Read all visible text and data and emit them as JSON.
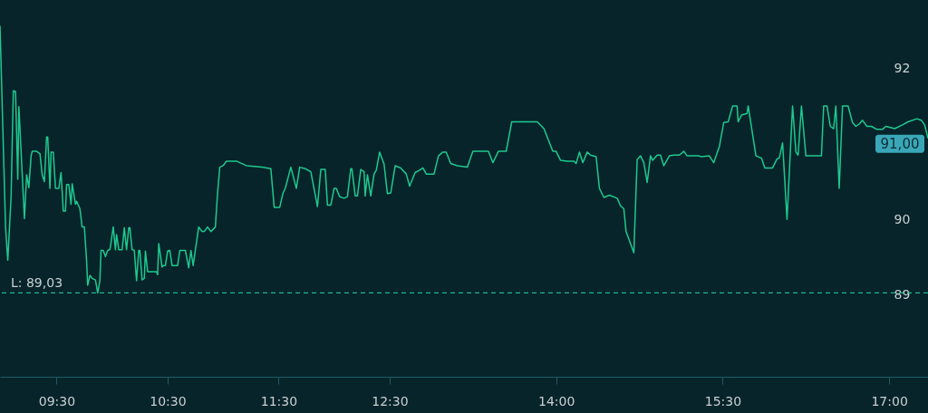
{
  "chart_data": {
    "type": "line",
    "x": [
      8.99,
      9.04,
      9.06,
      9.09,
      9.11,
      9.13,
      9.15,
      9.16,
      9.21,
      9.23,
      9.25,
      9.27,
      9.28,
      9.32,
      9.35,
      9.37,
      9.39,
      9.41,
      9.42,
      9.44,
      9.45,
      9.47,
      9.49,
      9.52,
      9.54,
      9.56,
      9.58,
      9.59,
      9.61,
      9.63,
      9.64,
      9.67,
      9.68,
      9.71,
      9.73,
      9.75,
      9.77,
      9.78,
      9.8,
      9.82,
      9.85,
      9.87,
      9.89,
      9.9,
      9.92,
      9.94,
      9.96,
      9.98,
      9.99,
      10.01,
      10.03,
      10.04,
      10.06,
      10.09,
      10.11,
      10.13,
      10.15,
      10.16,
      10.18,
      10.2,
      10.22,
      10.24,
      10.25,
      10.27,
      10.29,
      10.3,
      10.32,
      10.4,
      10.41,
      10.42,
      10.45,
      10.46,
      10.48,
      10.5,
      10.52,
      10.54,
      10.59,
      10.61,
      10.66,
      10.69,
      10.71,
      10.73,
      10.78,
      10.81,
      10.83,
      10.86,
      10.89,
      10.93,
      10.95,
      10.97,
      11.0,
      11.03,
      11.07,
      11.12,
      11.21,
      11.35,
      11.43,
      11.46,
      11.51,
      11.54,
      11.56,
      11.61,
      11.66,
      11.69,
      11.74,
      11.79,
      11.85,
      11.88,
      11.92,
      11.94,
      11.97,
      12.0,
      12.02,
      12.05,
      12.09,
      12.12,
      12.15,
      12.16,
      12.19,
      12.21,
      12.24,
      12.27,
      12.28,
      12.3,
      12.33,
      12.36,
      12.38,
      12.41,
      12.45,
      12.48,
      12.51,
      12.55,
      12.6,
      12.65,
      12.68,
      12.73,
      12.77,
      12.8,
      12.83,
      12.9,
      12.94,
      12.98,
      13.01,
      13.05,
      13.11,
      13.2,
      13.25,
      13.39,
      13.43,
      13.48,
      13.55,
      13.6,
      13.74,
      13.83,
      13.89,
      13.97,
      14.0,
      14.04,
      14.1,
      14.16,
      14.18,
      14.21,
      14.24,
      14.28,
      14.31,
      14.36,
      14.39,
      14.43,
      14.48,
      14.55,
      14.58,
      14.61,
      14.63,
      14.7,
      14.73,
      14.76,
      14.79,
      14.82,
      14.85,
      14.87,
      14.91,
      14.94,
      14.97,
      15.02,
      15.06,
      15.11,
      15.15,
      15.18,
      15.28,
      15.31,
      15.38,
      15.42,
      15.47,
      15.51,
      15.55,
      15.59,
      15.63,
      15.64,
      15.67,
      15.72,
      15.73,
      15.8,
      15.85,
      15.88,
      15.95,
      15.99,
      16.01,
      16.04,
      16.08,
      16.13,
      16.16,
      16.18,
      16.21,
      16.25,
      16.39,
      16.41,
      16.44,
      16.47,
      16.5,
      16.52,
      16.55,
      16.58,
      16.63,
      16.67,
      16.7,
      16.73,
      16.76,
      16.8,
      16.84,
      16.89,
      16.94,
      16.97,
      17.05,
      17.12,
      17.17,
      17.25,
      17.29,
      17.32,
      17.35
    ],
    "series": [
      {
        "color": "#1ec98f",
        "values": [
          92.56,
          89.9,
          89.46,
          90.3,
          91.7,
          91.69,
          90.53,
          91.49,
          90.01,
          90.59,
          90.42,
          90.84,
          90.9,
          90.9,
          90.87,
          90.59,
          90.5,
          91.09,
          91.09,
          90.41,
          90.89,
          90.89,
          90.41,
          90.41,
          90.62,
          90.11,
          90.11,
          90.46,
          90.46,
          90.2,
          90.47,
          90.2,
          90.24,
          90.14,
          89.9,
          89.9,
          89.46,
          89.13,
          89.26,
          89.22,
          89.2,
          89.03,
          89.19,
          89.59,
          89.59,
          89.51,
          89.59,
          89.6,
          89.69,
          89.9,
          89.6,
          89.8,
          89.6,
          89.6,
          89.89,
          89.6,
          89.89,
          89.89,
          89.6,
          89.59,
          89.19,
          89.59,
          89.59,
          89.2,
          89.22,
          89.58,
          89.31,
          89.31,
          89.27,
          89.68,
          89.37,
          89.39,
          89.39,
          89.58,
          89.59,
          89.39,
          89.39,
          89.59,
          89.59,
          89.36,
          89.59,
          89.39,
          89.9,
          89.84,
          89.84,
          89.9,
          89.84,
          89.9,
          90.35,
          90.69,
          90.71,
          90.77,
          90.77,
          90.77,
          90.71,
          90.69,
          90.67,
          90.16,
          90.16,
          90.35,
          90.41,
          90.69,
          90.41,
          90.69,
          90.67,
          90.63,
          90.17,
          90.66,
          90.66,
          90.19,
          90.19,
          90.41,
          90.41,
          90.3,
          90.28,
          90.3,
          90.67,
          90.67,
          90.31,
          90.31,
          90.66,
          90.63,
          90.31,
          90.59,
          90.31,
          90.6,
          90.65,
          90.89,
          90.73,
          90.34,
          90.35,
          90.71,
          90.68,
          90.6,
          90.44,
          90.62,
          90.65,
          90.68,
          90.6,
          90.6,
          90.84,
          90.89,
          90.89,
          90.74,
          90.71,
          90.69,
          90.9,
          90.9,
          90.75,
          90.9,
          90.9,
          91.29,
          91.29,
          91.29,
          91.2,
          90.9,
          90.9,
          90.78,
          90.77,
          90.77,
          90.74,
          90.89,
          90.75,
          90.89,
          90.85,
          90.83,
          90.41,
          90.29,
          90.32,
          90.28,
          90.18,
          90.14,
          89.84,
          89.56,
          90.79,
          90.84,
          90.75,
          90.49,
          90.84,
          90.78,
          90.85,
          90.85,
          90.71,
          90.84,
          90.85,
          90.85,
          90.9,
          90.84,
          90.84,
          90.83,
          90.84,
          90.75,
          90.96,
          91.28,
          91.29,
          91.5,
          91.5,
          91.29,
          91.38,
          91.4,
          91.5,
          90.84,
          90.81,
          90.68,
          90.68,
          90.8,
          90.81,
          91.01,
          90.0,
          91.5,
          90.89,
          90.85,
          91.5,
          90.84,
          90.84,
          91.5,
          91.5,
          91.23,
          91.2,
          91.5,
          90.41,
          91.5,
          91.5,
          91.28,
          91.23,
          91.26,
          91.31,
          91.23,
          91.23,
          91.19,
          91.19,
          91.23,
          91.2,
          91.25,
          91.29,
          91.33,
          91.31,
          91.25,
          91.07
        ]
      }
    ],
    "xlim": [
      8.99,
      17.35
    ],
    "ylim": [
      87.92,
      92.9
    ],
    "xticks": [
      {
        "value": 9.5,
        "label": "09:30"
      },
      {
        "value": 10.5,
        "label": "10:30"
      },
      {
        "value": 11.5,
        "label": "11:30"
      },
      {
        "value": 12.5,
        "label": "12:30"
      },
      {
        "value": 14,
        "label": "14:00"
      },
      {
        "value": 15.5,
        "label": "15:30"
      },
      {
        "value": 17,
        "label": "17:00"
      }
    ],
    "yticks": [
      89,
      90,
      92
    ],
    "ref_lines": [
      {
        "axis": "y",
        "value": 89.03,
        "label": "L: 89,03",
        "color": "#1fb88a",
        "line_style": "dashed"
      }
    ],
    "annotations": [
      {
        "text": "91,00",
        "x": 17.35,
        "y": 91
      }
    ],
    "grid": false,
    "marker": "none",
    "line_style": "solid"
  }
}
